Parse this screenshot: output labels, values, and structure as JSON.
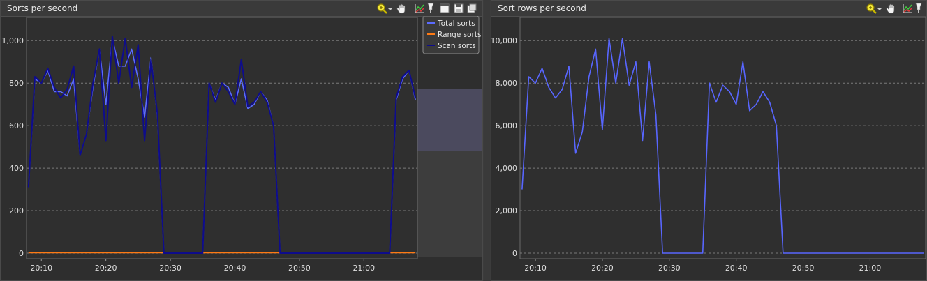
{
  "chart_data": [
    {
      "type": "line",
      "title": "Sorts per second",
      "x_ticks": [
        "20:10",
        "20:20",
        "20:30",
        "20:40",
        "20:50",
        "21:00"
      ],
      "y_ticks": [
        "1,000",
        "800",
        "600",
        "400",
        "200",
        "0"
      ],
      "ylim": [
        0,
        1050
      ],
      "grid": true,
      "legend_position": "top-right",
      "x": [
        "20:08",
        "20:09",
        "20:10",
        "20:11",
        "20:12",
        "20:13",
        "20:14",
        "20:15",
        "20:16",
        "20:17",
        "20:18",
        "20:19",
        "20:20",
        "20:21",
        "20:22",
        "20:23",
        "20:24",
        "20:25",
        "20:26",
        "20:27",
        "20:28",
        "20:29",
        "20:30",
        "20:35",
        "20:36",
        "20:37",
        "20:38",
        "20:39",
        "20:40",
        "20:41",
        "20:42",
        "20:43",
        "20:44",
        "20:45",
        "20:46",
        "20:47",
        "20:50",
        "21:00",
        "21:04",
        "21:05",
        "21:06",
        "21:07",
        "21:08"
      ],
      "series": [
        {
          "name": "Total sorts",
          "color": "#5b6bff",
          "values": [
            310,
            820,
            800,
            860,
            760,
            760,
            740,
            820,
            460,
            560,
            780,
            960,
            700,
            1010,
            880,
            880,
            960,
            820,
            640,
            920,
            640,
            0,
            0,
            0,
            800,
            720,
            800,
            780,
            700,
            820,
            680,
            700,
            760,
            720,
            600,
            0,
            0,
            0,
            0,
            720,
            820,
            860,
            720
          ]
        },
        {
          "name": "Range sorts",
          "color": "#ff7a14",
          "values": [
            2,
            2,
            2,
            2,
            2,
            2,
            2,
            2,
            2,
            2,
            2,
            2,
            2,
            2,
            2,
            2,
            2,
            2,
            2,
            2,
            2,
            2,
            2,
            2,
            2,
            2,
            2,
            2,
            2,
            2,
            2,
            2,
            2,
            2,
            2,
            2,
            2,
            2,
            2,
            2,
            2,
            2,
            2
          ]
        },
        {
          "name": "Scan sorts",
          "color": "#0e0c8c",
          "values": [
            310,
            830,
            800,
            870,
            780,
            730,
            770,
            880,
            460,
            560,
            800,
            960,
            530,
            1020,
            800,
            1010,
            780,
            980,
            530,
            910,
            650,
            0,
            0,
            0,
            800,
            710,
            800,
            760,
            700,
            910,
            690,
            710,
            760,
            710,
            600,
            0,
            0,
            0,
            0,
            730,
            830,
            860,
            730
          ]
        }
      ]
    },
    {
      "type": "line",
      "title": "Sort rows per second",
      "x_ticks": [
        "20:10",
        "20:20",
        "20:30",
        "20:40",
        "20:50",
        "21:00"
      ],
      "y_ticks": [
        "10,000",
        "8,000",
        "6,000",
        "4,000",
        "2,000",
        "0"
      ],
      "ylim": [
        0,
        10500
      ],
      "grid": true,
      "x": [
        "20:08",
        "20:09",
        "20:10",
        "20:11",
        "20:12",
        "20:13",
        "20:14",
        "20:15",
        "20:16",
        "20:17",
        "20:18",
        "20:19",
        "20:20",
        "20:21",
        "20:22",
        "20:23",
        "20:24",
        "20:25",
        "20:26",
        "20:27",
        "20:28",
        "20:29",
        "20:30",
        "20:35",
        "20:36",
        "20:37",
        "20:38",
        "20:39",
        "20:40",
        "20:41",
        "20:42",
        "20:43",
        "20:44",
        "20:45",
        "20:46",
        "20:47",
        "20:50",
        "21:00",
        "21:08"
      ],
      "series": [
        {
          "color": "#5866ff",
          "values": [
            3000,
            8300,
            8000,
            8700,
            7800,
            7300,
            7700,
            8800,
            4700,
            5700,
            8300,
            9600,
            5800,
            10100,
            8000,
            10100,
            7900,
            9000,
            5300,
            9000,
            6500,
            0,
            0,
            0,
            8000,
            7100,
            7900,
            7600,
            7000,
            9000,
            6700,
            7000,
            7600,
            7100,
            6000,
            0,
            0,
            0,
            0
          ]
        }
      ]
    }
  ],
  "icons": [
    "zoom-icon",
    "dropdown-icon",
    "pan-icon",
    "chart-icon",
    "lamp-icon",
    "window-icon",
    "save-icon",
    "copy-icon"
  ]
}
